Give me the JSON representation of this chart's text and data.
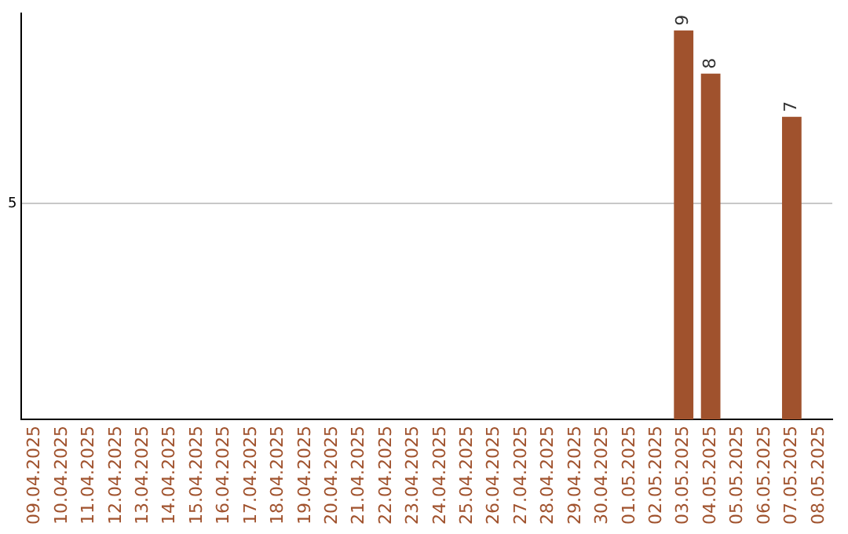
{
  "chart_data": {
    "type": "bar",
    "categories": [
      "09.04.2025",
      "10.04.2025",
      "11.04.2025",
      "12.04.2025",
      "13.04.2025",
      "14.04.2025",
      "15.04.2025",
      "16.04.2025",
      "17.04.2025",
      "18.04.2025",
      "19.04.2025",
      "20.04.2025",
      "21.04.2025",
      "22.04.2025",
      "23.04.2025",
      "24.04.2025",
      "25.04.2025",
      "26.04.2025",
      "27.04.2025",
      "28.04.2025",
      "29.04.2025",
      "30.04.2025",
      "01.05.2025",
      "02.05.2025",
      "03.05.2025",
      "04.05.2025",
      "05.05.2025",
      "06.05.2025",
      "07.05.2025",
      "08.05.2025"
    ],
    "values": [
      null,
      null,
      null,
      null,
      null,
      null,
      null,
      null,
      null,
      null,
      null,
      null,
      null,
      null,
      null,
      null,
      null,
      null,
      null,
      null,
      null,
      null,
      null,
      null,
      9,
      8,
      null,
      null,
      7,
      null
    ],
    "color": "#a0522d",
    "ylim": [
      0,
      9.4
    ],
    "yticks": [
      5
    ],
    "grid": "y",
    "data_labels": true,
    "legend": false
  }
}
